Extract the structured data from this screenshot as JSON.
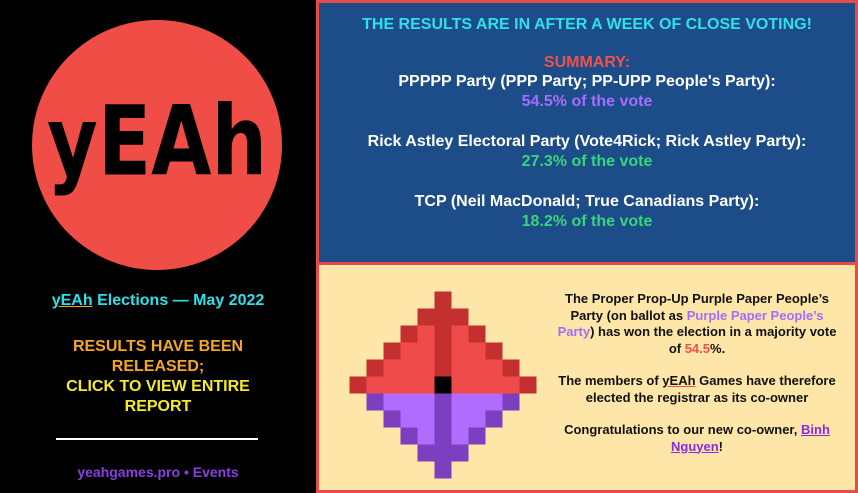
{
  "logo": {
    "text": "yEAh"
  },
  "event": {
    "brand": "yEAh",
    "title": "Elections — May 2022"
  },
  "notice": {
    "line1": "RESULTS HAVE BEEN RELEASED;",
    "line2": "CLICK TO VIEW ENTIRE REPORT"
  },
  "footer": "yeahgames.pro • Events",
  "summary": {
    "headline": "THE RESULTS ARE IN AFTER A WEEK OF CLOSE VOTING!",
    "label": "SUMMARY:",
    "results": [
      {
        "party": "PPPPP Party (PPP Party; PP-UPP People's Party):",
        "share": "54.5% of the vote"
      },
      {
        "party": "Rick Astley Electoral Party (Vote4Rick; Rick Astley Party):",
        "share": "27.3% of the vote"
      },
      {
        "party": "TCP (Neil MacDonald; True Canadians Party):",
        "share": "18.2% of the vote"
      }
    ]
  },
  "announcement": {
    "p1": [
      "The Proper Prop-Up Purple Paper People’s Party (on ballot as ",
      "Purple Paper People’s Party",
      ") has won the election in a majority vote of ",
      "54.5",
      "%."
    ],
    "p2": [
      "The members of ",
      "yEAh",
      " Games have therefore elected the registrar as its co-owner"
    ],
    "p3": [
      "Congratulations to our new co-owner, ",
      "Binh Nguyen",
      "!"
    ]
  }
}
